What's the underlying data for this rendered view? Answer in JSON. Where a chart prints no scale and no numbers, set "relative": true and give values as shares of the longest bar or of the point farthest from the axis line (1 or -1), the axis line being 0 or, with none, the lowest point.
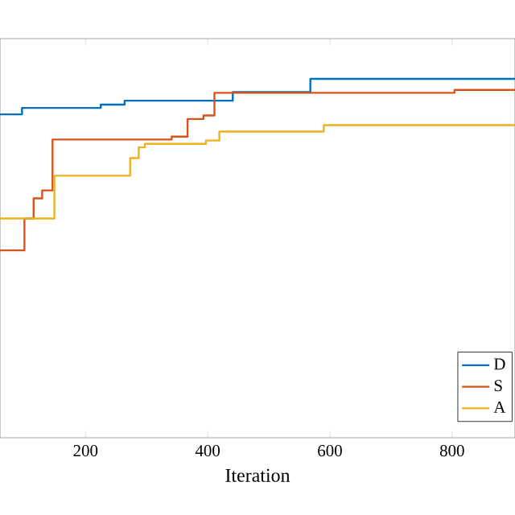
{
  "chart_data": {
    "type": "step",
    "xlabel": "Iteration",
    "relative": true,
    "xlim": [
      60,
      903
    ],
    "xticks": [
      200,
      400,
      600,
      800
    ],
    "legend": "bottom right",
    "grid": false,
    "series": [
      {
        "name": "D",
        "color": "#0072bd",
        "x": [
          60,
          96,
          225,
          264,
          441,
          568,
          903
        ],
        "values": [
          0.901,
          0.919,
          0.928,
          0.939,
          0.963,
          1.0,
          1.0
        ]
      },
      {
        "name": "S",
        "color": "#d95319",
        "x": [
          60,
          100,
          115,
          129,
          146,
          341,
          367,
          393,
          411,
          804,
          903
        ],
        "values": [
          0.522,
          0.611,
          0.667,
          0.689,
          0.831,
          0.839,
          0.888,
          0.898,
          0.961,
          0.969,
          0.969
        ]
      },
      {
        "name": "A",
        "color": "#edb120",
        "x": [
          60,
          149,
          273,
          287,
          297,
          397,
          419,
          590,
          903
        ],
        "values": [
          0.611,
          0.73,
          0.779,
          0.809,
          0.819,
          0.828,
          0.853,
          0.871,
          0.871
        ]
      }
    ]
  }
}
